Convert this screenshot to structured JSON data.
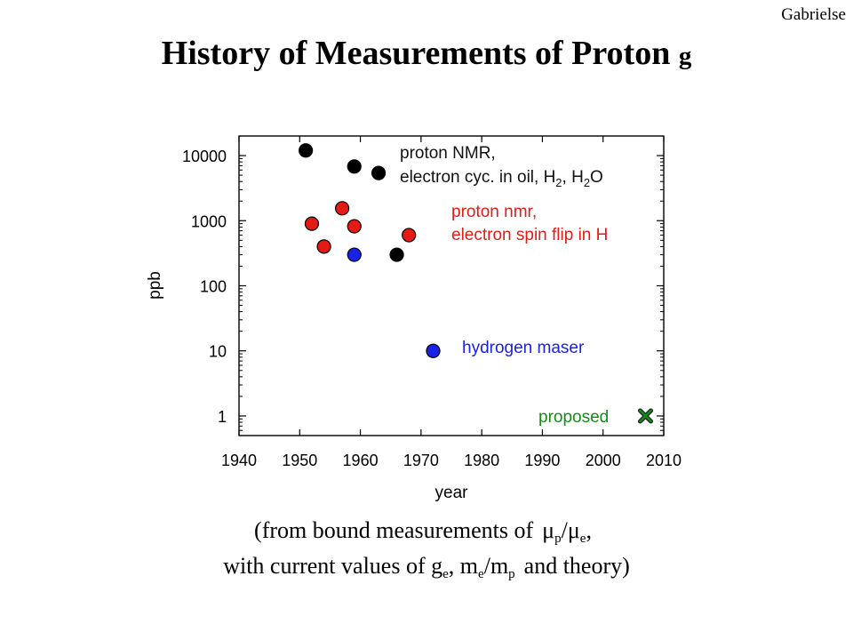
{
  "header": {
    "author": "Gabrielse",
    "title_main": "History of Measurements of Proton",
    "title_symbol": "g"
  },
  "caption": {
    "line1_prefix": "(from bound measurements of",
    "mu": "μ",
    "sub_p": "p",
    "slash": "/",
    "sub_e": "e",
    "line1_suffix": ",",
    "line2_prefix": "with current values of g",
    "comma": ",",
    "m": "m",
    "line2_suffix": "and theory)"
  },
  "chart_data": {
    "type": "scatter",
    "xlabel": "year",
    "ylabel": "ppb",
    "xlim": [
      1940,
      2010
    ],
    "ylim": [
      0.5,
      20000
    ],
    "yscale": "log",
    "grid": false,
    "xticks": [
      "1940",
      "1950",
      "1960",
      "1970",
      "1980",
      "1990",
      "2000",
      "2010"
    ],
    "yticks": [
      "1",
      "10",
      "100",
      "1000",
      "10000"
    ],
    "colors": {
      "black": "#000000",
      "red": "#e41a14",
      "blue": "#1a22e6",
      "green": "#148c14",
      "black_label": "#111111",
      "red_label": "#e41a14",
      "blue_label": "#1a22e6",
      "green_label": "#148c14"
    },
    "series": [
      {
        "color": "black",
        "marker": "circle",
        "points": [
          {
            "x": 1951,
            "y": 12000
          },
          {
            "x": 1959,
            "y": 6800
          },
          {
            "x": 1963,
            "y": 5400
          },
          {
            "x": 1966,
            "y": 300
          }
        ]
      },
      {
        "color": "red",
        "marker": "circle",
        "points": [
          {
            "x": 1952,
            "y": 900
          },
          {
            "x": 1954,
            "y": 400
          },
          {
            "x": 1957,
            "y": 1550
          },
          {
            "x": 1959,
            "y": 820
          },
          {
            "x": 1968,
            "y": 600
          }
        ]
      },
      {
        "color": "blue",
        "marker": "circle",
        "points": [
          {
            "x": 1959,
            "y": 300
          },
          {
            "x": 1972,
            "y": 10
          }
        ]
      },
      {
        "color": "green",
        "marker": "x",
        "points": [
          {
            "x": 2007,
            "y": 1
          }
        ]
      }
    ],
    "annotations": {
      "black_line1": "proton NMR,",
      "black_line2a": "electron cyc. in oil, H",
      "black_sub1": "2",
      "black_line2b": ", H",
      "black_sub2": "2",
      "black_line2c": "O",
      "red_line1": "proton nmr,",
      "red_line2": "electron spin flip in H",
      "blue": "hydrogen maser",
      "green": "proposed"
    }
  }
}
